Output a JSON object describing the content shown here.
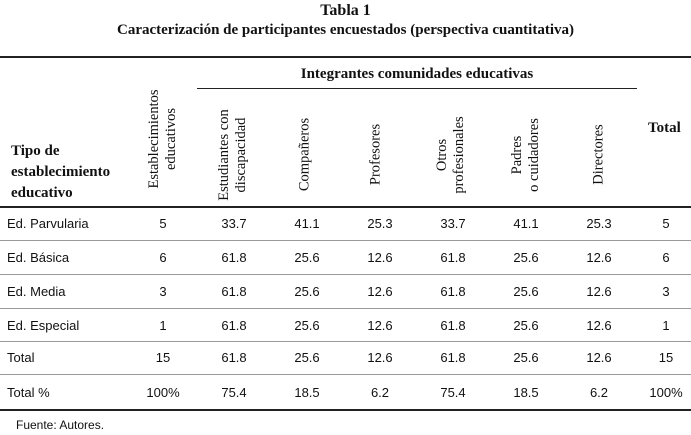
{
  "title": "Tabla 1",
  "subtitle": "Caracterización de participantes encuestados (perspectiva cuantitativa)",
  "header": {
    "tipo_lines": [
      "Tipo de",
      "establecimiento",
      "educativo"
    ],
    "establecimientos_lines": [
      "Establecimientos",
      "educativos"
    ],
    "group_label": "Integrantes comunidades educativas",
    "columns": [
      {
        "lines": [
          "Estudiantes con",
          "discapacidad"
        ]
      },
      {
        "lines": [
          "Compañeros"
        ]
      },
      {
        "lines": [
          "Profesores"
        ]
      },
      {
        "lines": [
          "Otros",
          "profesionales"
        ]
      },
      {
        "lines": [
          "Padres",
          "o cuidadores"
        ]
      },
      {
        "lines": [
          "Directores"
        ]
      }
    ],
    "total": "Total"
  },
  "rows": [
    {
      "label": "Ed. Parvularia",
      "cells": [
        "5",
        "33.7",
        "41.1",
        "25.3",
        "33.7",
        "41.1",
        "25.3",
        "5"
      ]
    },
    {
      "label": "Ed. Básica",
      "cells": [
        "6",
        "61.8",
        "25.6",
        "12.6",
        "61.8",
        "25.6",
        "12.6",
        "6"
      ]
    },
    {
      "label": "Ed. Media",
      "cells": [
        "3",
        "61.8",
        "25.6",
        "12.6",
        "61.8",
        "25.6",
        "12.6",
        "3"
      ]
    },
    {
      "label": "Ed. Especial",
      "cells": [
        "1",
        "61.8",
        "25.6",
        "12.6",
        "61.8",
        "25.6",
        "12.6",
        "1"
      ]
    },
    {
      "label": "Total",
      "cells": [
        "15",
        "61.8",
        "25.6",
        "12.6",
        "61.8",
        "25.6",
        "12.6",
        "15"
      ]
    },
    {
      "label": "Total %",
      "cells": [
        "100%",
        "75.4",
        "18.5",
        "6.2",
        "75.4",
        "18.5",
        "6.2",
        "100%"
      ]
    }
  ],
  "source": "Fuente: Autores."
}
